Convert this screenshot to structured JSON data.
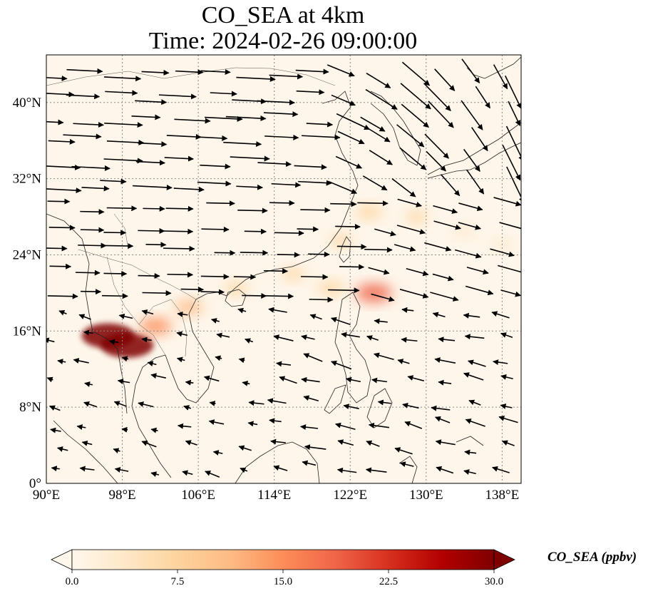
{
  "title": {
    "line1": "CO_SEA at 4km",
    "line2": "Time: 2024-02-26 09:00:00"
  },
  "axes": {
    "lon_ticks": [
      "90°E",
      "98°E",
      "106°E",
      "114°E",
      "122°E",
      "130°E",
      "138°E"
    ],
    "lat_ticks": [
      "0°",
      "8°N",
      "16°N",
      "24°N",
      "32°N",
      "40°N"
    ],
    "lon_range": [
      90,
      140
    ],
    "lat_range": [
      0,
      45
    ],
    "gridlines": "dotted"
  },
  "colorbar": {
    "label": "CO_SEA (ppbv)",
    "ticks": [
      "0.0",
      "7.5",
      "15.0",
      "22.5",
      "30.0"
    ],
    "range": [
      0,
      30
    ],
    "extend": "both",
    "colormap": "OrRd",
    "colors": [
      "#fff7ec",
      "#fee8c8",
      "#fdd49e",
      "#fdbb84",
      "#fc8d59",
      "#ef6548",
      "#d7301f",
      "#b30000",
      "#7f0000"
    ]
  },
  "chart_data": {
    "type": "heatmap",
    "title": "CO_SEA at 4km",
    "subtitle": "Time: 2024-02-26 09:00:00",
    "variable": "CO_SEA",
    "units": "ppbv",
    "plumes": [
      {
        "lon": 96.5,
        "lat": 15.5,
        "value": 30
      },
      {
        "lon": 98.5,
        "lat": 14.5,
        "value": 30
      },
      {
        "lon": 101.5,
        "lat": 16.5,
        "value": 14
      },
      {
        "lon": 105,
        "lat": 18.5,
        "value": 11
      },
      {
        "lon": 110,
        "lat": 20.5,
        "value": 7
      },
      {
        "lon": 116,
        "lat": 22,
        "value": 6
      },
      {
        "lon": 120,
        "lat": 20.5,
        "value": 9
      },
      {
        "lon": 124.5,
        "lat": 20,
        "value": 17
      },
      {
        "lon": 121,
        "lat": 25.5,
        "value": 6
      },
      {
        "lon": 124,
        "lat": 28.5,
        "value": 9
      },
      {
        "lon": 129,
        "lat": 28,
        "value": 6
      },
      {
        "lon": 134,
        "lat": 26.5,
        "value": 5
      },
      {
        "lon": 138,
        "lat": 25,
        "value": 4
      }
    ],
    "wind_regimes": [
      {
        "region": "north of 30°N",
        "direction": "westerly to north-westerly"
      },
      {
        "region": "20°N–30°N",
        "direction": "westerly"
      },
      {
        "region": "south of 18°N",
        "direction": "easterly to north-easterly"
      }
    ]
  }
}
